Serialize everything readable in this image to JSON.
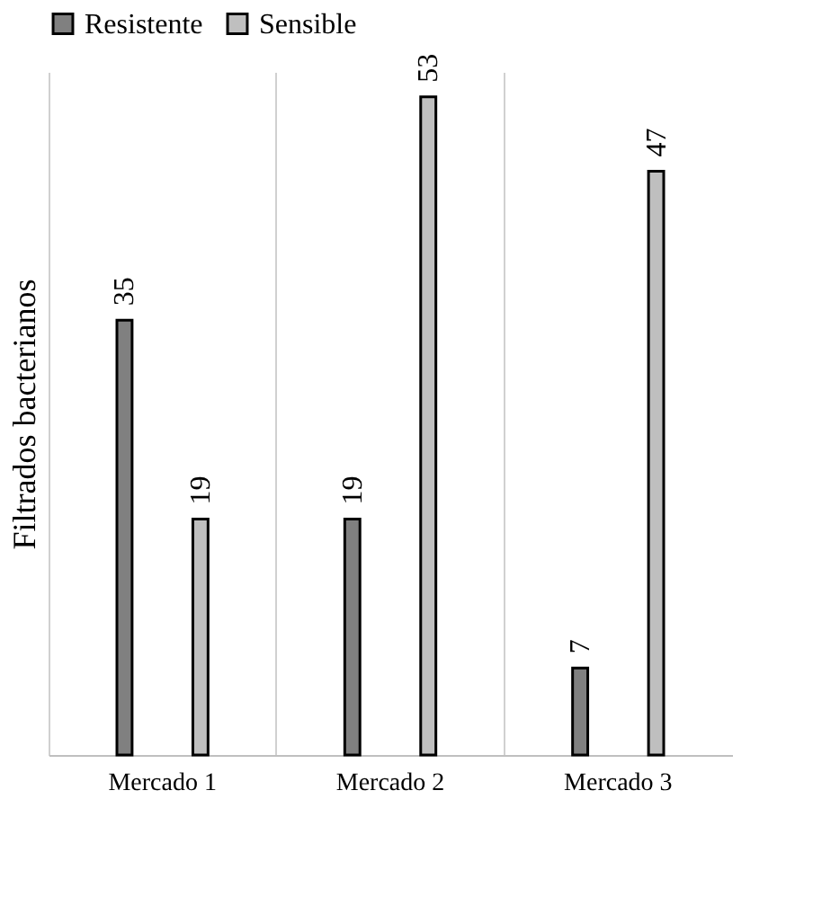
{
  "chart_data": {
    "type": "bar",
    "ylabel": "Filtrados bacterianos",
    "categories": [
      "Mercado 1",
      "Mercado 2",
      "Mercado 3"
    ],
    "series": [
      {
        "name": "Resistente",
        "color": "#808080",
        "values": [
          35,
          19,
          7
        ]
      },
      {
        "name": "Sensible",
        "color": "#bfbfbf",
        "values": [
          19,
          53,
          47
        ]
      }
    ],
    "data_labels": true,
    "grid": "x",
    "legend": "top",
    "tick_labels": "x"
  }
}
